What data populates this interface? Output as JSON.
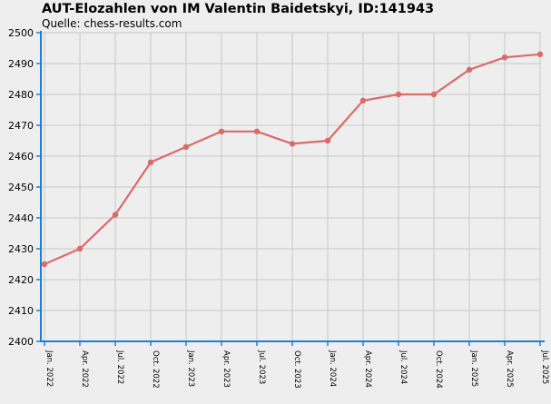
{
  "chart_data": {
    "type": "line",
    "title": "AUT-Elozahlen von IM Valentin Baidetskyi, ID:141943",
    "subtitle": "Quelle: chess-results.com",
    "xlabel": "",
    "ylabel": "",
    "ylim": [
      2400,
      2500
    ],
    "y_ticks": [
      2400,
      2410,
      2420,
      2430,
      2440,
      2450,
      2460,
      2470,
      2480,
      2490,
      2500
    ],
    "categories": [
      "Jan. 2022",
      "Apr. 2022",
      "Jul. 2022",
      "Oct. 2022",
      "Jan. 2023",
      "Apr. 2023",
      "Jul. 2023",
      "Oct. 2023",
      "Jan. 2024",
      "Apr. 2024",
      "Jul. 2024",
      "Oct. 2024",
      "Jan. 2025",
      "Apr. 2025",
      "Jul. 2025"
    ],
    "series": [
      {
        "values": [
          2425,
          2430,
          2441,
          2458,
          2463,
          2468,
          2468,
          2464,
          2465,
          2478,
          2480,
          2480,
          2488,
          2492,
          2493
        ]
      }
    ],
    "grid": true,
    "colors": {
      "line": "#d96b6b",
      "marker": "#d96b6b",
      "axis": "#1e7fd8",
      "grid": "#c8c8c8",
      "background": "#eeeeee"
    }
  }
}
